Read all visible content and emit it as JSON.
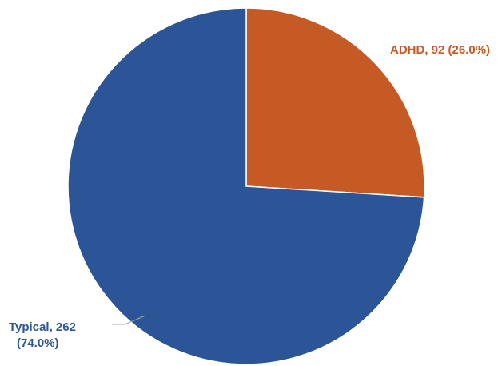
{
  "chart_data": {
    "type": "pie",
    "title": "",
    "start_angle_deg": 0,
    "direction": "clockwise",
    "slices": [
      {
        "name": "ADHD",
        "value": 92,
        "percent": 26.0,
        "label": "ADHD, 92 (26.0%)",
        "label_lines": [
          "ADHD, 92 (26.0%)"
        ],
        "color": "#c55a24"
      },
      {
        "name": "Typical",
        "value": 262,
        "percent": 74.0,
        "label": "Typical, 262 (74.0%)",
        "label_lines": [
          "Typical, 262",
          "(74.0%)"
        ],
        "color": "#2b5597"
      }
    ],
    "legend": "none",
    "slice_border_color": "#ffffff",
    "leader_line_color": "#a6a6a6"
  }
}
